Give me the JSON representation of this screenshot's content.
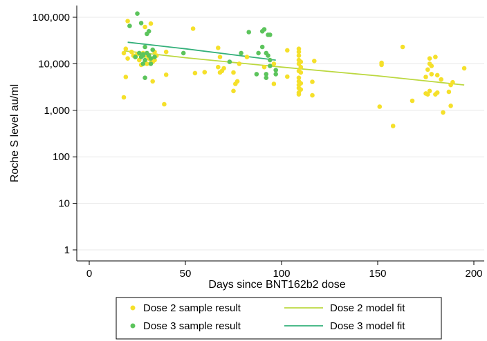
{
  "chart_data": {
    "type": "scatter",
    "title": "",
    "xlabel": "Days since BNT162b2 dose",
    "ylabel": "Roche S level au/ml",
    "xlim": [
      0,
      200
    ],
    "ylim": [
      1,
      100000
    ],
    "y_scale": "log",
    "grid": true,
    "legend_position": "bottom",
    "x_ticks": [
      0,
      50,
      100,
      150,
      200
    ],
    "x_tick_labels": [
      "0",
      "50",
      "100",
      "150",
      "200"
    ],
    "y_ticks": [
      1,
      10,
      100,
      1000,
      10000,
      100000
    ],
    "y_tick_labels": [
      "1",
      "10",
      "100",
      "1,000",
      "10,000",
      "100,000"
    ],
    "colors": {
      "dose2": "#f5e02a",
      "dose3": "#5cc45c",
      "dose2_fit": "#bcd840",
      "dose3_fit": "#33b07a"
    },
    "series": [
      {
        "name": "Dose 2 sample result",
        "kind": "scatter",
        "points": [
          [
            18,
            1900
          ],
          [
            18,
            17000
          ],
          [
            19,
            21000
          ],
          [
            19,
            5200
          ],
          [
            20,
            13000
          ],
          [
            20,
            83000
          ],
          [
            22,
            18000
          ],
          [
            23,
            15000
          ],
          [
            24,
            14000
          ],
          [
            25,
            16000
          ],
          [
            26,
            12000
          ],
          [
            27,
            9500
          ],
          [
            27,
            16000
          ],
          [
            28,
            17000
          ],
          [
            29,
            62000
          ],
          [
            29,
            15000
          ],
          [
            30,
            10000
          ],
          [
            30,
            15000
          ],
          [
            31,
            13000
          ],
          [
            31,
            14000
          ],
          [
            32,
            73000
          ],
          [
            32,
            12000
          ],
          [
            33,
            4200
          ],
          [
            33,
            11000
          ],
          [
            34,
            18000
          ],
          [
            34,
            12000
          ],
          [
            35,
            15000
          ],
          [
            39,
            1350
          ],
          [
            40,
            18000
          ],
          [
            40,
            5800
          ],
          [
            54,
            57000
          ],
          [
            55,
            6300
          ],
          [
            60,
            6600
          ],
          [
            67,
            8500
          ],
          [
            67,
            22000
          ],
          [
            68,
            6500
          ],
          [
            68,
            14000
          ],
          [
            69,
            7000
          ],
          [
            70,
            8000
          ],
          [
            75,
            2600
          ],
          [
            75,
            6500
          ],
          [
            76,
            3700
          ],
          [
            77,
            4200
          ],
          [
            78,
            10000
          ],
          [
            82,
            14000
          ],
          [
            91,
            8500
          ],
          [
            96,
            3700
          ],
          [
            96,
            10000
          ],
          [
            103,
            5300
          ],
          [
            103,
            19500
          ],
          [
            109,
            21000
          ],
          [
            109,
            18000
          ],
          [
            109,
            15000
          ],
          [
            109,
            12000
          ],
          [
            109,
            10000
          ],
          [
            109,
            7000
          ],
          [
            109,
            5000
          ],
          [
            109,
            4200
          ],
          [
            109,
            3500
          ],
          [
            109,
            3000
          ],
          [
            109,
            2400
          ],
          [
            109,
            2200
          ],
          [
            110,
            11000
          ],
          [
            110,
            8500
          ],
          [
            110,
            6500
          ],
          [
            110,
            3800
          ],
          [
            110,
            2800
          ],
          [
            116,
            4100
          ],
          [
            116,
            2100
          ],
          [
            117,
            11500
          ],
          [
            151,
            1200
          ],
          [
            152,
            9500
          ],
          [
            152,
            10500
          ],
          [
            158,
            460
          ],
          [
            163,
            23000
          ],
          [
            168,
            1600
          ],
          [
            175,
            5200
          ],
          [
            175,
            2300
          ],
          [
            176,
            7500
          ],
          [
            176,
            2200
          ],
          [
            177,
            13000
          ],
          [
            177,
            10000
          ],
          [
            177,
            2600
          ],
          [
            178,
            9000
          ],
          [
            178,
            6000
          ],
          [
            180,
            14000
          ],
          [
            180,
            2200
          ],
          [
            181,
            2400
          ],
          [
            181,
            5700
          ],
          [
            183,
            4600
          ],
          [
            184,
            900
          ],
          [
            187,
            2500
          ],
          [
            188,
            1250
          ],
          [
            188,
            3500
          ],
          [
            189,
            4000
          ],
          [
            195,
            8000
          ]
        ]
      },
      {
        "name": "Dose 3 sample result",
        "kind": "scatter",
        "points": [
          [
            21,
            65000
          ],
          [
            24,
            14000
          ],
          [
            25,
            120000
          ],
          [
            26,
            17000
          ],
          [
            27,
            14000
          ],
          [
            27,
            75000
          ],
          [
            28,
            10000
          ],
          [
            28,
            15000
          ],
          [
            28,
            16000
          ],
          [
            29,
            23000
          ],
          [
            29,
            12000
          ],
          [
            29,
            5000
          ],
          [
            30,
            44000
          ],
          [
            30,
            17000
          ],
          [
            31,
            50000
          ],
          [
            31,
            15000
          ],
          [
            32,
            13000
          ],
          [
            32,
            10000
          ],
          [
            33,
            20000
          ],
          [
            34,
            14000
          ],
          [
            49,
            17000
          ],
          [
            73,
            11000
          ],
          [
            79,
            17000
          ],
          [
            83,
            48000
          ],
          [
            87,
            6000
          ],
          [
            88,
            17000
          ],
          [
            90,
            23000
          ],
          [
            90,
            50000
          ],
          [
            91,
            55000
          ],
          [
            92,
            6000
          ],
          [
            92,
            5000
          ],
          [
            92,
            17000
          ],
          [
            93,
            42000
          ],
          [
            93,
            15000
          ],
          [
            94,
            42000
          ],
          [
            94,
            12000
          ],
          [
            94,
            9000
          ],
          [
            97,
            7300
          ],
          [
            97,
            6000
          ]
        ]
      },
      {
        "name": "Dose 2 model fit",
        "kind": "line",
        "points": [
          [
            18,
            19000
          ],
          [
            50,
            13500
          ],
          [
            100,
            8500
          ],
          [
            150,
            5500
          ],
          [
            195,
            3500
          ]
        ]
      },
      {
        "name": "Dose 3 model fit",
        "kind": "line",
        "points": [
          [
            20,
            29000
          ],
          [
            50,
            21000
          ],
          [
            97,
            12000
          ]
        ]
      }
    ],
    "legend": [
      {
        "label": "Dose 2 sample result",
        "marker": "point",
        "color": "#f5e02a"
      },
      {
        "label": "Dose 2 model fit",
        "marker": "line",
        "color": "#bcd840"
      },
      {
        "label": "Dose 3 sample result",
        "marker": "point",
        "color": "#5cc45c"
      },
      {
        "label": "Dose 3 model fit",
        "marker": "line",
        "color": "#33b07a"
      }
    ]
  }
}
